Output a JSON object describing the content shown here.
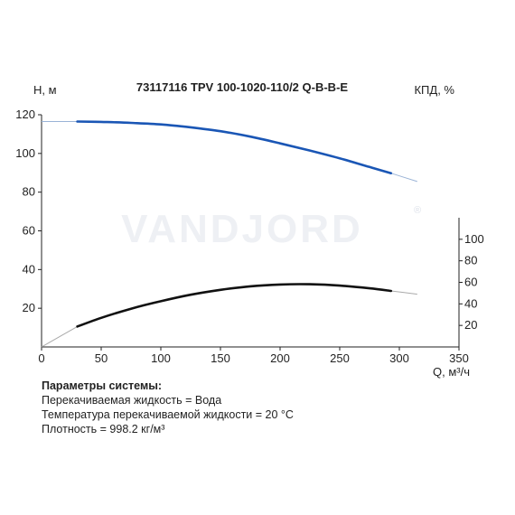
{
  "chart_data": {
    "type": "line",
    "title": "73117116 TPV 100-1020-110/2 Q-B-B-E",
    "watermark": "VANDJORD",
    "watermark_mark": "®",
    "xlabel": "Q, м³/ч",
    "ylabel_left": "H, м",
    "ylabel_right": "КПД, %",
    "xlim": [
      0,
      350
    ],
    "ylim_left": [
      0,
      120
    ],
    "ylim_right": [
      0,
      120
    ],
    "x_ticks": [
      0,
      50,
      100,
      150,
      200,
      250,
      300,
      350
    ],
    "y_left_ticks": [
      20,
      40,
      60,
      80,
      100,
      120
    ],
    "y_right_ticks": [
      20,
      40,
      60,
      80,
      100
    ],
    "grid": false,
    "series": [
      {
        "axis": "left",
        "color": "#1a56b5",
        "extension_color": "#9ab3d6",
        "x": [
          30,
          50,
          75,
          100,
          125,
          150,
          175,
          200,
          225,
          250,
          275,
          293
        ],
        "y": [
          116.5,
          116.3,
          115.8,
          115,
          113.5,
          111.5,
          108.7,
          105.2,
          101.5,
          97.5,
          93,
          89.8
        ],
        "extension_left": {
          "x": [
            0,
            30
          ],
          "y": [
            116.5,
            116.5
          ]
        },
        "extension_right": {
          "x": [
            293,
            315
          ],
          "y": [
            89.8,
            85.5
          ]
        }
      },
      {
        "axis": "right",
        "color": "#111111",
        "extension_color": "#aaaaaa",
        "x": [
          30,
          50,
          75,
          100,
          125,
          150,
          175,
          200,
          225,
          250,
          275,
          293
        ],
        "y": [
          19,
          27,
          35.5,
          42.5,
          48.5,
          53,
          56.3,
          58,
          58.2,
          57,
          54.5,
          52
        ],
        "extension_left": {
          "x": [
            0,
            30
          ],
          "y": [
            0,
            19
          ]
        },
        "extension_right": {
          "x": [
            293,
            315
          ],
          "y": [
            52,
            49
          ]
        }
      }
    ]
  },
  "params": {
    "heading": "Параметры системы:",
    "line1": "Перекачиваемая жидкость = Вода",
    "line2": "Температура перекачиваемой жидкости = 20 °С",
    "line3": "Плотность = 998.2 кг/м³"
  }
}
